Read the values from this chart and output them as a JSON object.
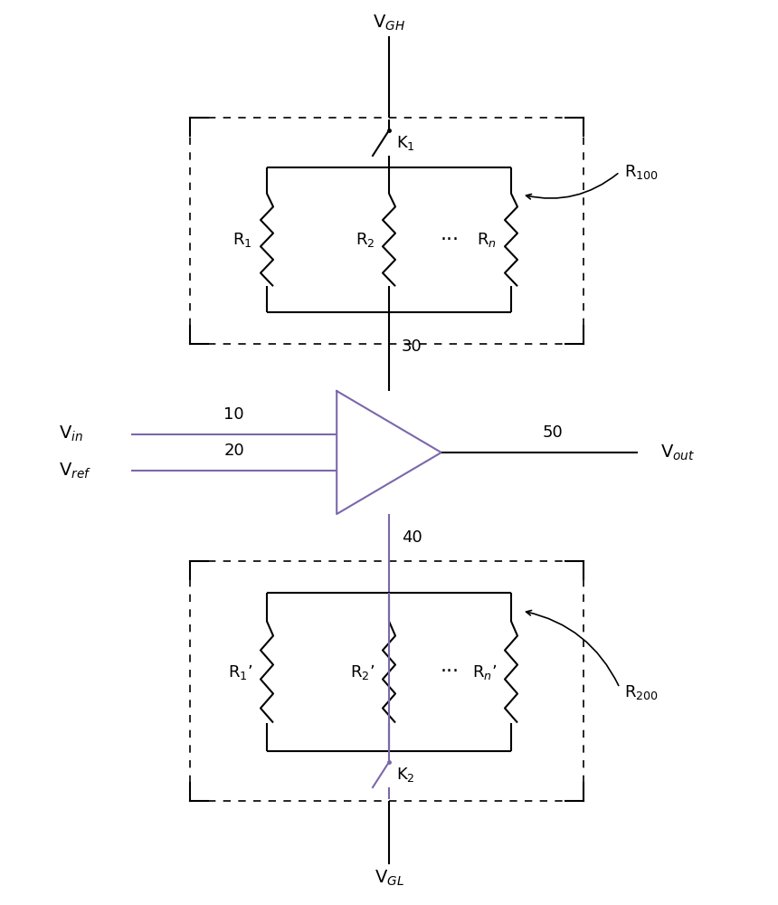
{
  "bg_color": "#ffffff",
  "line_color": "#000000",
  "purple_color": "#7B68AA",
  "fig_width": 8.6,
  "fig_height": 10.0,
  "dpi": 100,
  "vgh_label": "V$_{GH}$",
  "vgl_label": "V$_{GL}$",
  "vin_label": "V$_{in}$",
  "vref_label": "V$_{ref}$",
  "vout_label": "V$_{out}$",
  "label_10": "10",
  "label_20": "20",
  "label_30": "30",
  "label_40": "40",
  "label_50": "50",
  "label_R100": "R$_{100}$",
  "label_R200": "R$_{200}$",
  "label_K1": "K$_1$",
  "label_K2": "K$_2$",
  "label_R1": "R$_1$",
  "label_R2": "R$_2$",
  "label_Rn": "R$_n$",
  "label_R1p": "R$_1$’",
  "label_R2p": "R$_2$’",
  "label_Rnp": "R$_n$’",
  "label_dots": "···"
}
